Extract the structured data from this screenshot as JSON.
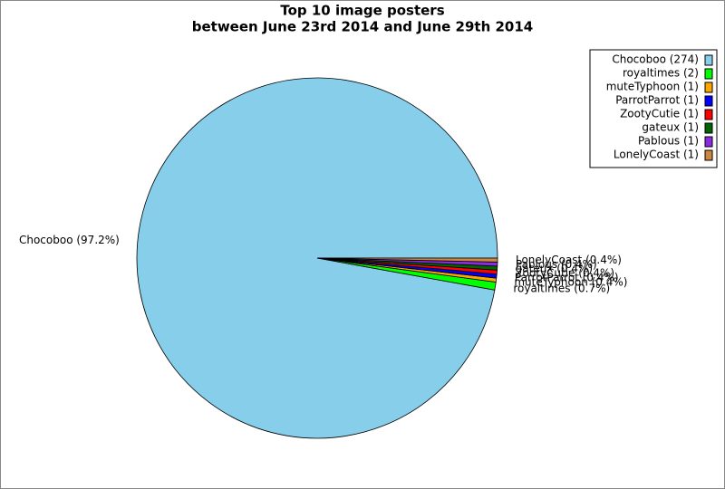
{
  "chart_data": {
    "type": "pie",
    "title": "Top 10 image posters",
    "subtitle": "between June 23rd 2014 and June 29th 2014",
    "categories": [
      "Chocoboo",
      "royaltimes",
      "muteTyphoon",
      "ParrotParrot",
      "ZootyCutie",
      "gateux",
      "Pablous",
      "LonelyCoast"
    ],
    "values": [
      274,
      2,
      1,
      1,
      1,
      1,
      1,
      1
    ],
    "value_labels": [
      "Chocoboo (274)",
      "royaltimes (2)",
      "muteTyphoon (1)",
      "ParrotParrot (1)",
      "ZootyCutie (1)",
      "gateux (1)",
      "Pablous (1)",
      "LonelyCoast (1)"
    ],
    "percent_labels": [
      "Chocoboo (97.2%)",
      "royaltimes (0.7%)",
      "muteTyphoon (0.4%)",
      "ParrotParrot (0.4%)",
      "ZootyCutie (0.4%)",
      "gateux (0.4%)",
      "Pablous (0.4%)",
      "LonelyCoast (0.4%)"
    ],
    "colors": [
      "#87ceeb",
      "#00ff00",
      "#ffa500",
      "#0000ff",
      "#ff0000",
      "#006400",
      "#8a2be2",
      "#cd853f"
    ],
    "legend": "upper right"
  }
}
